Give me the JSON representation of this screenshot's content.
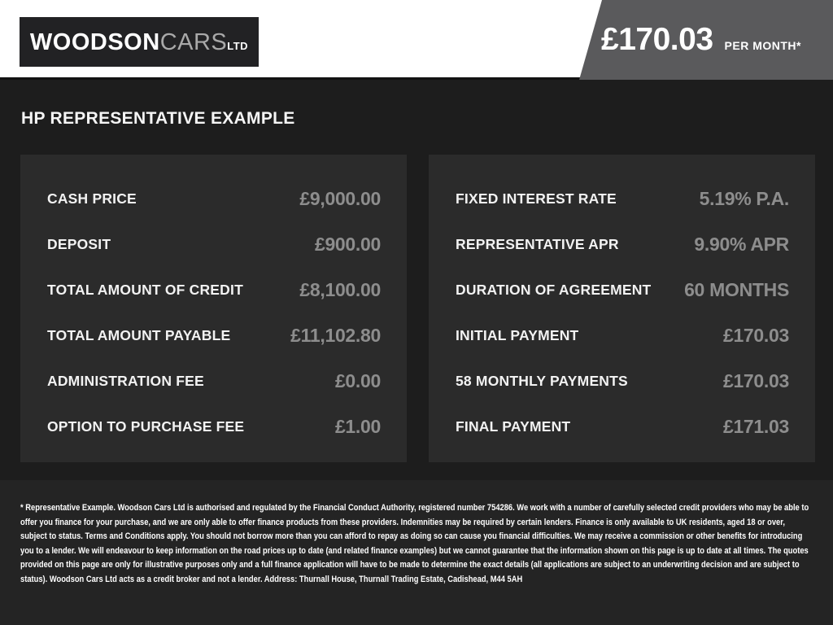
{
  "header": {
    "logo": {
      "woodson": "WOODSON",
      "cars": "CARS",
      "ltd": "LTD"
    },
    "price_badge": {
      "amount": "£170.03",
      "suffix": "PER MONTH*"
    }
  },
  "page_title": "HP REPRESENTATIVE EXAMPLE",
  "finance_example": {
    "left_rows": [
      {
        "label": "CASH PRICE",
        "value": "£9,000.00"
      },
      {
        "label": "DEPOSIT",
        "value": "£900.00"
      },
      {
        "label": "TOTAL AMOUNT OF CREDIT",
        "value": "£8,100.00"
      },
      {
        "label": "TOTAL AMOUNT PAYABLE",
        "value": "£11,102.80"
      },
      {
        "label": "ADMINISTRATION FEE",
        "value": "£0.00"
      },
      {
        "label": "OPTION TO PURCHASE FEE",
        "value": "£1.00"
      }
    ],
    "right_rows": [
      {
        "label": "FIXED INTEREST RATE",
        "value": "5.19% P.A."
      },
      {
        "label": "REPRESENTATIVE APR",
        "value": "9.90% APR"
      },
      {
        "label": "DURATION OF AGREEMENT",
        "value": "60 MONTHS"
      },
      {
        "label": "INITIAL PAYMENT",
        "value": "£170.03"
      },
      {
        "label": "58 MONTHLY PAYMENTS",
        "value": "£170.03"
      },
      {
        "label": "FINAL PAYMENT",
        "value": "£171.03"
      }
    ]
  },
  "footer": {
    "disclaimer": "* Representative Example. Woodson Cars Ltd is authorised and regulated by the Financial Conduct Authority, registered number 754286. We work with a number of carefully selected credit providers who may be able to offer you finance for your purchase, and we are only able to offer finance products from these providers. Indemnities may be required by certain lenders. Finance is only available to UK residents, aged 18 or over, subject to status. Terms and Conditions apply. You should not borrow more than you can afford to repay as doing so can cause you financial difficulties. We may receive a commission or other benefits for introducing you to a lender. We will endeavour to keep information on the road prices up to date (and related finance examples) but we cannot guarantee that the information shown on this page is up to date at all times. The quotes provided on this page are only for illustrative purposes only and a full finance application will have to be made to determine the exact details (all applications are subject to an underwriting decision and are subject to status). Woodson Cars Ltd acts as a credit broker and not a lender. Address: Thurnall House, Thurnall Trading Estate, Cadishead, M44 5AH"
  },
  "colors": {
    "header_bg": "#ffffff",
    "logo_box_bg": "#222224",
    "price_badge_bg": "#5a5a5c",
    "page_bg": "#1d1d1d",
    "panel_bg": "#2b2b2b",
    "footer_bg": "#242424",
    "label_text": "#f2f2f2",
    "value_text": "#8d8d8d"
  }
}
